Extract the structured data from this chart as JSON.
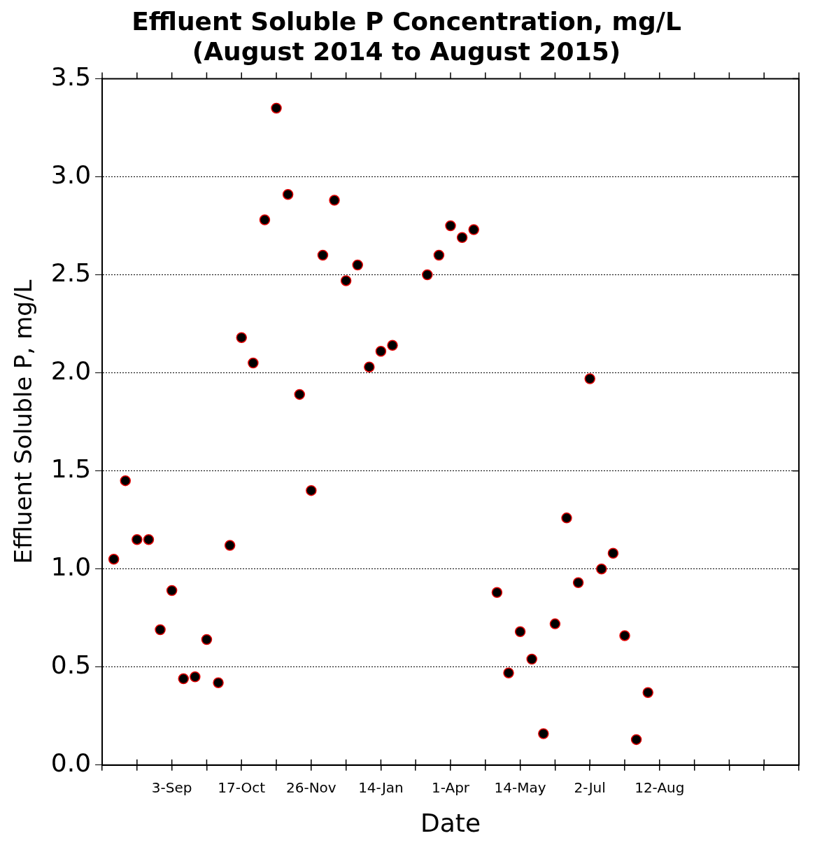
{
  "chart_data": {
    "type": "scatter",
    "title": "Effluent Soluble P Concentration, mg/L",
    "subtitle": "(August 2014 to August 2015)",
    "xlabel": "Date",
    "ylabel": "Effluent Soluble P, mg/L",
    "categories": [
      null,
      null,
      null,
      null,
      null,
      "3-Sep",
      null,
      null,
      null,
      null,
      null,
      "17-Oct",
      null,
      null,
      null,
      null,
      null,
      "26-Nov",
      null,
      null,
      null,
      null,
      null,
      "14-Jan",
      null,
      null,
      null,
      null,
      null,
      "1-Apr",
      null,
      null,
      null,
      null,
      null,
      "14-May",
      null,
      null,
      null,
      null,
      null,
      "2-Jul",
      null,
      null,
      null,
      null,
      null,
      "12-Aug",
      null,
      null,
      null,
      null,
      null,
      null,
      null,
      null,
      null,
      null,
      null
    ],
    "series": [
      {
        "color": "#000000",
        "values": [
          1.05,
          1.45,
          1.15,
          1.15,
          0.69,
          0.89,
          0.44,
          0.45,
          0.64,
          0.42,
          1.12,
          2.18,
          2.05,
          2.78,
          3.35,
          2.91,
          1.89,
          1.4,
          2.6,
          2.88,
          2.47,
          2.55,
          2.03,
          2.11,
          2.14,
          null,
          null,
          2.5,
          2.6,
          2.75,
          2.69,
          2.73,
          null,
          0.88,
          0.47,
          0.68,
          0.54,
          0.16,
          0.72,
          1.26,
          0.93,
          1.97,
          1.0,
          1.08,
          0.66,
          0.13,
          0.37,
          null,
          null,
          null,
          null,
          null,
          null,
          null,
          null,
          null,
          null,
          null,
          null
        ]
      }
    ],
    "ylim": [
      0,
      3.5
    ],
    "yticks": [
      {
        "value": 0,
        "label": "0.0"
      },
      {
        "value": 0.5,
        "label": "0.5"
      },
      {
        "value": 1,
        "label": "1.0"
      },
      {
        "value": 1.5,
        "label": "1.5"
      },
      {
        "value": 2,
        "label": "2.0"
      },
      {
        "value": 2.5,
        "label": "2.5"
      },
      {
        "value": 3,
        "label": "3.0"
      },
      {
        "value": 3.5,
        "label": "3.5"
      }
    ],
    "grid": "y",
    "legend": false,
    "marker": "circle"
  }
}
